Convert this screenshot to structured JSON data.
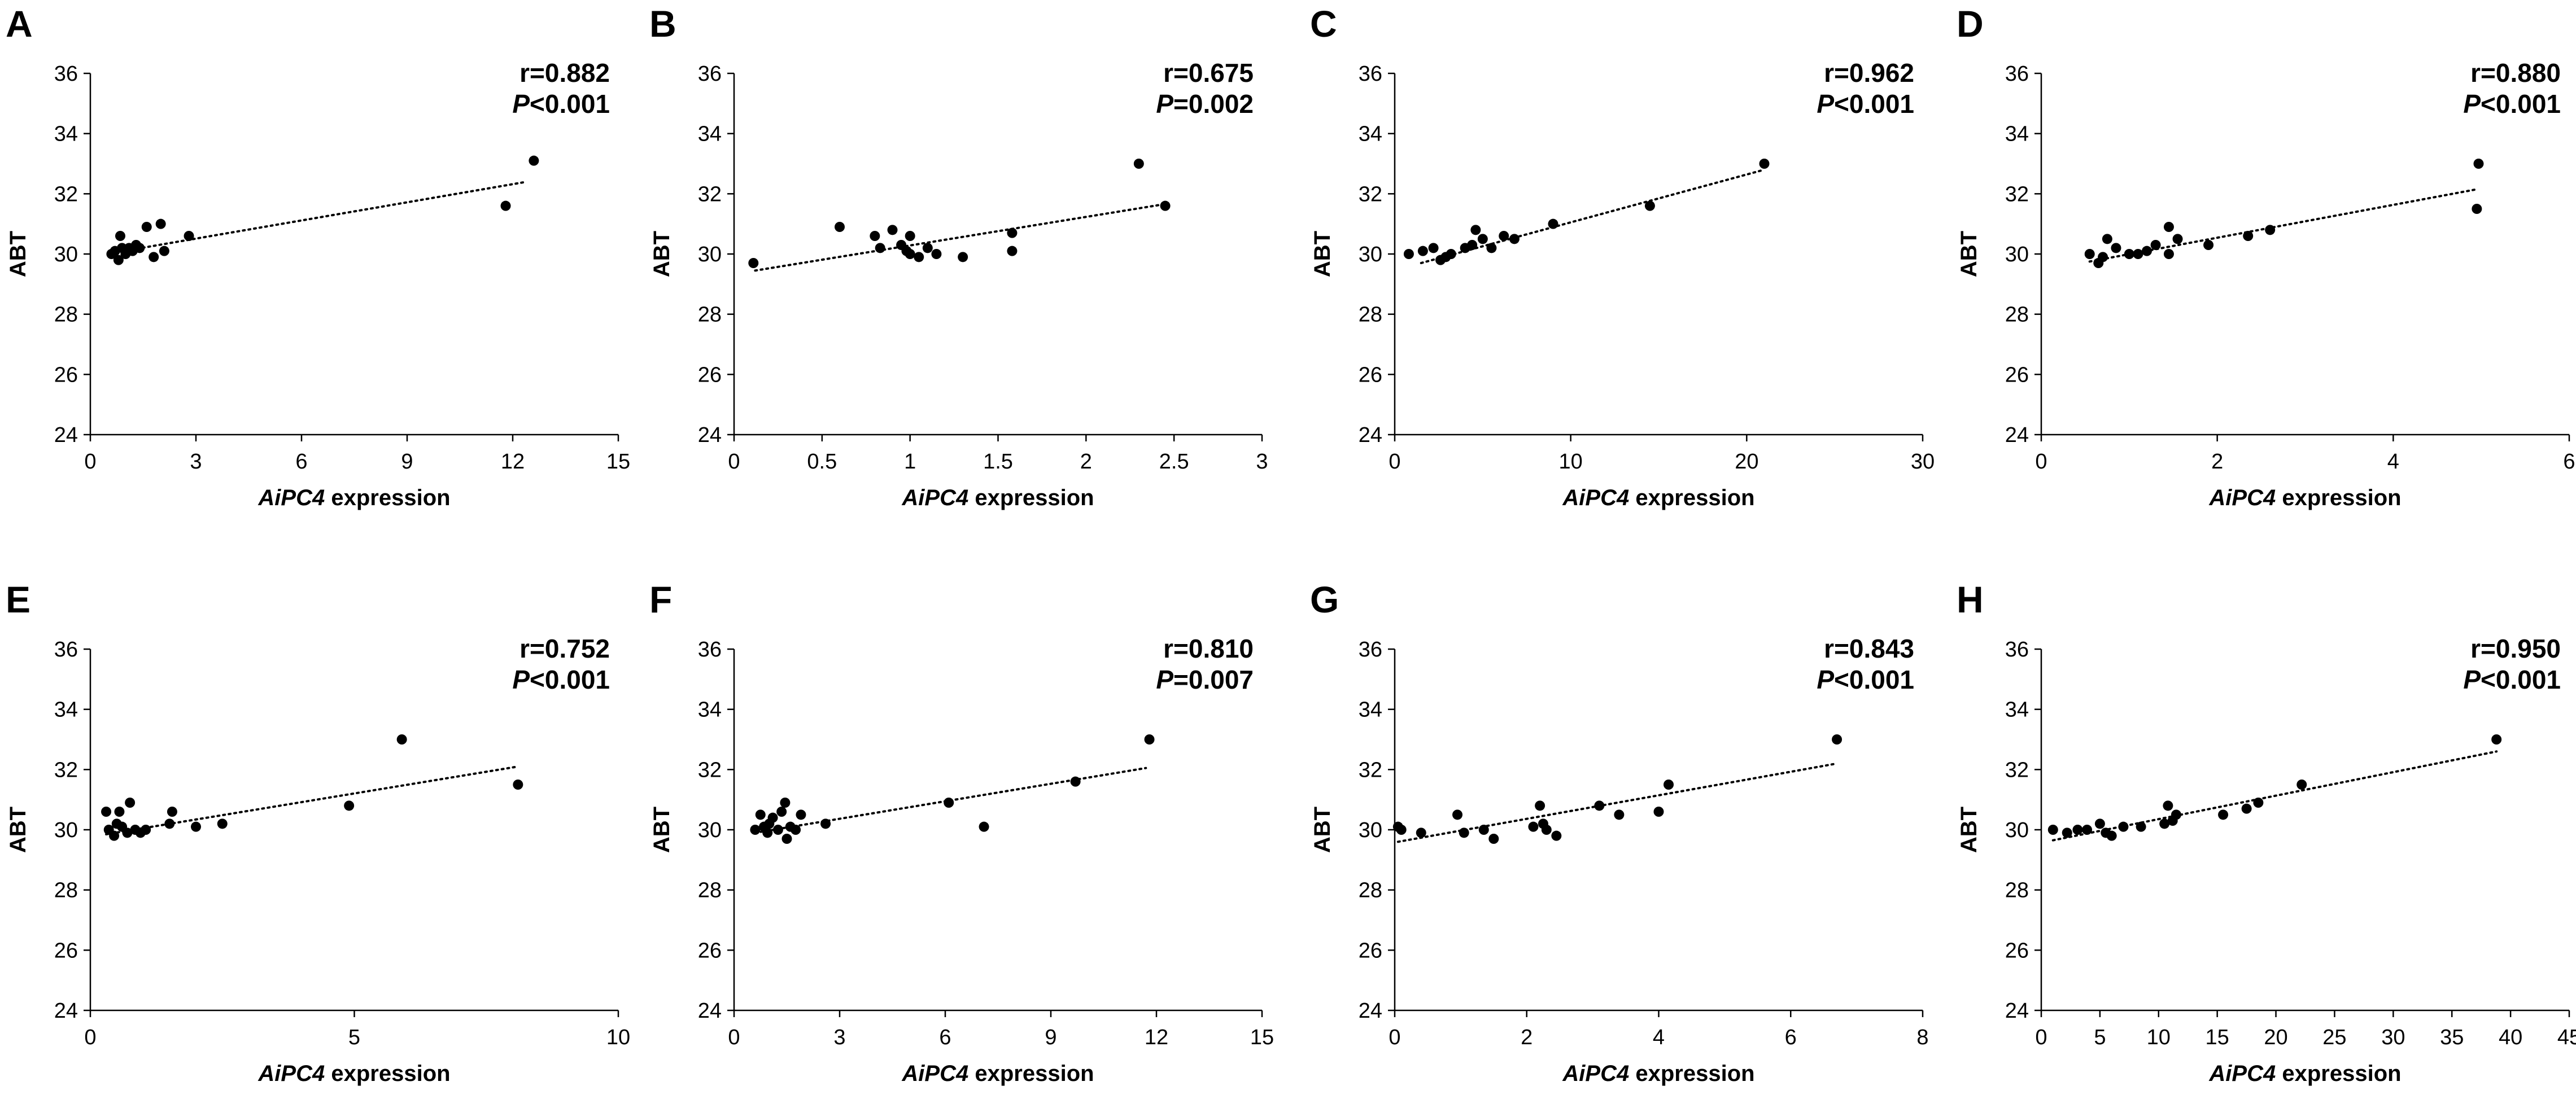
{
  "figure": {
    "background": "#ffffff",
    "ink": "#000000"
  },
  "chart_data": [
    {
      "panel": "A",
      "type": "scatter",
      "ylabel": "ABT",
      "xlabel_italic": "AiPC4",
      "xlabel_rest": " expression",
      "xlim": [
        0,
        15
      ],
      "xticks": [
        0,
        3,
        6,
        9,
        12,
        15
      ],
      "ylim": [
        24,
        36
      ],
      "yticks": [
        24,
        26,
        28,
        30,
        32,
        34,
        36
      ],
      "r": "r=0.882",
      "p_italic": "P",
      "p_rest": "<0.001",
      "trend": {
        "x": [
          0.7,
          12.4
        ],
        "y": [
          30.05,
          32.4
        ]
      },
      "points": [
        [
          0.6,
          30.0
        ],
        [
          0.7,
          30.1
        ],
        [
          0.8,
          29.8
        ],
        [
          0.9,
          30.2
        ],
        [
          1.0,
          30.0
        ],
        [
          1.1,
          30.2
        ],
        [
          1.2,
          30.1
        ],
        [
          1.3,
          30.3
        ],
        [
          1.4,
          30.2
        ],
        [
          0.85,
          30.6
        ],
        [
          1.6,
          30.9
        ],
        [
          1.8,
          29.9
        ],
        [
          2.0,
          31.0
        ],
        [
          2.1,
          30.1
        ],
        [
          2.8,
          30.6
        ],
        [
          11.8,
          31.6
        ],
        [
          12.6,
          33.1
        ]
      ]
    },
    {
      "panel": "B",
      "type": "scatter",
      "ylabel": "ABT",
      "xlabel_italic": "AiPC4",
      "xlabel_rest": " expression",
      "xlim": [
        0,
        3
      ],
      "xticks": [
        0,
        0.5,
        1,
        1.5,
        2,
        2.5,
        3
      ],
      "ylim": [
        24,
        36
      ],
      "yticks": [
        24,
        26,
        28,
        30,
        32,
        34,
        36
      ],
      "r": "r=0.675",
      "p_italic": "P",
      "p_rest": "=0.002",
      "trend": {
        "x": [
          0.12,
          2.44
        ],
        "y": [
          29.45,
          31.65
        ]
      },
      "points": [
        [
          0.11,
          29.7
        ],
        [
          0.6,
          30.9
        ],
        [
          0.8,
          30.6
        ],
        [
          0.83,
          30.2
        ],
        [
          0.9,
          30.8
        ],
        [
          0.95,
          30.3
        ],
        [
          0.98,
          30.1
        ],
        [
          1.0,
          30.6
        ],
        [
          1.0,
          30.0
        ],
        [
          1.05,
          29.9
        ],
        [
          1.1,
          30.2
        ],
        [
          1.15,
          30.0
        ],
        [
          1.3,
          29.9
        ],
        [
          1.58,
          30.1
        ],
        [
          1.58,
          30.7
        ],
        [
          2.3,
          33.0
        ],
        [
          2.45,
          31.6
        ]
      ]
    },
    {
      "panel": "C",
      "type": "scatter",
      "ylabel": "ABT",
      "xlabel_italic": "AiPC4",
      "xlabel_rest": " expression",
      "xlim": [
        0,
        30
      ],
      "xticks": [
        0,
        10,
        20,
        30
      ],
      "ylim": [
        24,
        36
      ],
      "yticks": [
        24,
        26,
        28,
        30,
        32,
        34,
        36
      ],
      "r": "r=0.962",
      "p_italic": "P",
      "p_rest": "<0.001",
      "trend": {
        "x": [
          1.5,
          21.0
        ],
        "y": [
          29.7,
          32.8
        ]
      },
      "points": [
        [
          0.8,
          30.0
        ],
        [
          1.6,
          30.1
        ],
        [
          2.2,
          30.2
        ],
        [
          2.6,
          29.8
        ],
        [
          2.9,
          29.9
        ],
        [
          3.2,
          30.0
        ],
        [
          4.0,
          30.2
        ],
        [
          4.4,
          30.3
        ],
        [
          4.6,
          30.8
        ],
        [
          5.0,
          30.5
        ],
        [
          5.5,
          30.2
        ],
        [
          6.2,
          30.6
        ],
        [
          6.8,
          30.5
        ],
        [
          9.0,
          31.0
        ],
        [
          14.5,
          31.6
        ],
        [
          21.0,
          33.0
        ]
      ]
    },
    {
      "panel": "D",
      "type": "scatter",
      "ylabel": "ABT",
      "xlabel_italic": "AiPC4",
      "xlabel_rest": " expression",
      "xlim": [
        0,
        6
      ],
      "xticks": [
        0,
        2,
        4,
        6
      ],
      "ylim": [
        24,
        36
      ],
      "yticks": [
        24,
        26,
        28,
        30,
        32,
        34,
        36
      ],
      "r": "r=0.880",
      "p_italic": "P",
      "p_rest": "<0.001",
      "trend": {
        "x": [
          0.55,
          4.95
        ],
        "y": [
          29.75,
          32.15
        ]
      },
      "points": [
        [
          0.55,
          30.0
        ],
        [
          0.65,
          29.7
        ],
        [
          0.7,
          29.9
        ],
        [
          0.75,
          30.5
        ],
        [
          0.85,
          30.2
        ],
        [
          1.0,
          30.0
        ],
        [
          1.1,
          30.0
        ],
        [
          1.2,
          30.1
        ],
        [
          1.3,
          30.3
        ],
        [
          1.45,
          30.0
        ],
        [
          1.45,
          30.9
        ],
        [
          1.55,
          30.5
        ],
        [
          1.9,
          30.3
        ],
        [
          2.35,
          30.6
        ],
        [
          2.6,
          30.8
        ],
        [
          4.95,
          31.5
        ],
        [
          4.97,
          33.0
        ]
      ]
    },
    {
      "panel": "E",
      "type": "scatter",
      "ylabel": "ABT",
      "xlabel_italic": "AiPC4",
      "xlabel_rest": " expression",
      "xlim": [
        0,
        10
      ],
      "xticks": [
        0,
        5,
        10
      ],
      "ylim": [
        24,
        36
      ],
      "yticks": [
        24,
        26,
        28,
        30,
        32,
        34,
        36
      ],
      "r": "r=0.752",
      "p_italic": "P",
      "p_rest": "<0.001",
      "trend": {
        "x": [
          0.3,
          8.1
        ],
        "y": [
          29.85,
          32.1
        ]
      },
      "points": [
        [
          0.3,
          30.6
        ],
        [
          0.35,
          30.0
        ],
        [
          0.45,
          29.8
        ],
        [
          0.5,
          30.2
        ],
        [
          0.55,
          30.6
        ],
        [
          0.6,
          30.1
        ],
        [
          0.7,
          29.9
        ],
        [
          0.75,
          30.9
        ],
        [
          0.85,
          30.0
        ],
        [
          0.95,
          29.9
        ],
        [
          1.05,
          30.0
        ],
        [
          1.5,
          30.2
        ],
        [
          1.55,
          30.6
        ],
        [
          2.0,
          30.1
        ],
        [
          2.5,
          30.2
        ],
        [
          4.9,
          30.8
        ],
        [
          5.9,
          33.0
        ],
        [
          8.1,
          31.5
        ]
      ]
    },
    {
      "panel": "F",
      "type": "scatter",
      "ylabel": "ABT",
      "xlabel_italic": "AiPC4",
      "xlabel_rest": " expression",
      "xlim": [
        0,
        15
      ],
      "xticks": [
        0,
        3,
        6,
        9,
        12,
        15
      ],
      "ylim": [
        24,
        36
      ],
      "yticks": [
        24,
        26,
        28,
        30,
        32,
        34,
        36
      ],
      "r": "r=0.810",
      "p_italic": "P",
      "p_rest": "=0.007",
      "trend": {
        "x": [
          0.6,
          11.7
        ],
        "y": [
          29.9,
          32.05
        ]
      },
      "points": [
        [
          0.6,
          30.0
        ],
        [
          0.75,
          30.5
        ],
        [
          0.85,
          30.1
        ],
        [
          0.95,
          29.9
        ],
        [
          1.0,
          30.2
        ],
        [
          1.1,
          30.4
        ],
        [
          1.25,
          30.0
        ],
        [
          1.35,
          30.6
        ],
        [
          1.45,
          30.9
        ],
        [
          1.5,
          29.7
        ],
        [
          1.6,
          30.1
        ],
        [
          1.75,
          30.0
        ],
        [
          1.9,
          30.5
        ],
        [
          2.6,
          30.2
        ],
        [
          6.1,
          30.9
        ],
        [
          7.1,
          30.1
        ],
        [
          9.7,
          31.6
        ],
        [
          11.8,
          33.0
        ]
      ]
    },
    {
      "panel": "G",
      "type": "scatter",
      "ylabel": "ABT",
      "xlabel_italic": "AiPC4",
      "xlabel_rest": " expression",
      "xlim": [
        0,
        8
      ],
      "xticks": [
        0,
        2,
        4,
        6,
        8
      ],
      "ylim": [
        24,
        36
      ],
      "yticks": [
        24,
        26,
        28,
        30,
        32,
        34,
        36
      ],
      "r": "r=0.843",
      "p_italic": "P",
      "p_rest": "<0.001",
      "trend": {
        "x": [
          0.05,
          6.7
        ],
        "y": [
          29.6,
          32.2
        ]
      },
      "points": [
        [
          0.05,
          30.1
        ],
        [
          0.1,
          30.0
        ],
        [
          0.4,
          29.9
        ],
        [
          0.95,
          30.5
        ],
        [
          1.05,
          29.9
        ],
        [
          1.35,
          30.0
        ],
        [
          1.5,
          29.7
        ],
        [
          2.1,
          30.1
        ],
        [
          2.2,
          30.8
        ],
        [
          2.25,
          30.2
        ],
        [
          2.3,
          30.0
        ],
        [
          2.45,
          29.8
        ],
        [
          3.1,
          30.8
        ],
        [
          3.4,
          30.5
        ],
        [
          4.0,
          30.6
        ],
        [
          4.15,
          31.5
        ],
        [
          6.7,
          33.0
        ]
      ]
    },
    {
      "panel": "H",
      "type": "scatter",
      "ylabel": "ABT",
      "xlabel_italic": "AiPC4",
      "xlabel_rest": " expression",
      "xlim": [
        0,
        45
      ],
      "xticks": [
        0,
        5,
        10,
        15,
        20,
        25,
        30,
        35,
        40,
        45
      ],
      "ylim": [
        24,
        36
      ],
      "yticks": [
        24,
        26,
        28,
        30,
        32,
        34,
        36
      ],
      "r": "r=0.950",
      "p_italic": "P",
      "p_rest": "<0.001",
      "trend": {
        "x": [
          1.0,
          38.8
        ],
        "y": [
          29.65,
          32.6
        ]
      },
      "points": [
        [
          1.0,
          30.0
        ],
        [
          2.2,
          29.9
        ],
        [
          3.1,
          30.0
        ],
        [
          3.9,
          30.0
        ],
        [
          5.0,
          30.2
        ],
        [
          5.5,
          29.9
        ],
        [
          6.0,
          29.8
        ],
        [
          7.0,
          30.1
        ],
        [
          8.5,
          30.1
        ],
        [
          10.5,
          30.2
        ],
        [
          10.8,
          30.8
        ],
        [
          11.2,
          30.3
        ],
        [
          11.5,
          30.5
        ],
        [
          15.5,
          30.5
        ],
        [
          17.5,
          30.7
        ],
        [
          18.5,
          30.9
        ],
        [
          22.2,
          31.5
        ],
        [
          38.8,
          33.0
        ]
      ]
    }
  ]
}
